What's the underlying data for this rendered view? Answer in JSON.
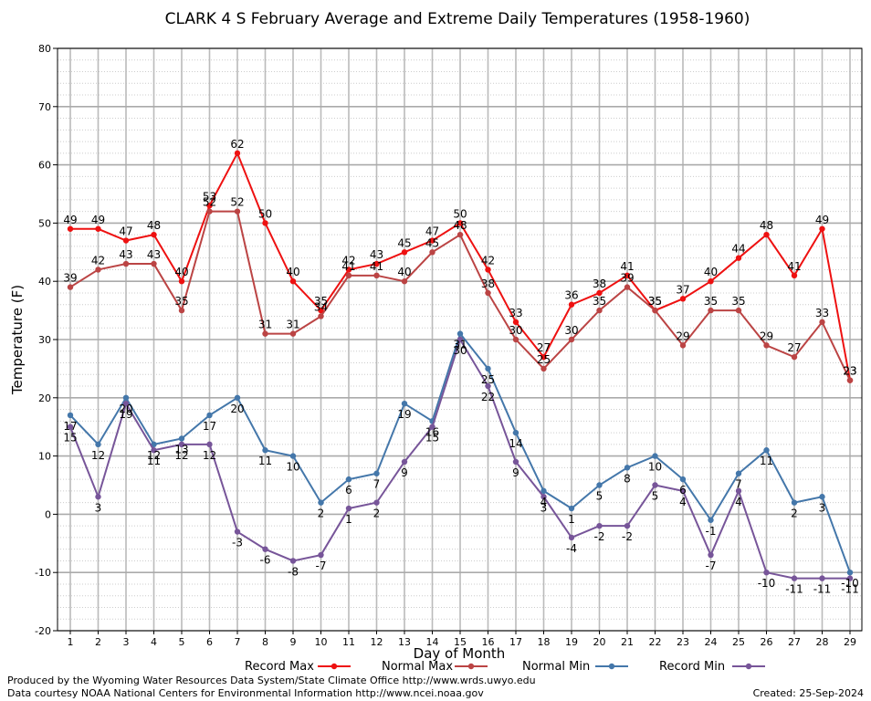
{
  "chart_data": {
    "type": "line",
    "title": "CLARK 4 S February Average and Extreme Daily Temperatures (1958-1960)",
    "xlabel": "Day of Month",
    "ylabel": "Temperature (F)",
    "x": [
      1,
      2,
      3,
      4,
      5,
      6,
      7,
      8,
      9,
      10,
      11,
      12,
      13,
      14,
      15,
      16,
      17,
      18,
      19,
      20,
      21,
      22,
      23,
      24,
      25,
      26,
      27,
      28,
      29
    ],
    "ylim": [
      -20,
      80
    ],
    "yticks": [
      -20,
      -10,
      0,
      10,
      20,
      30,
      40,
      50,
      60,
      70,
      80
    ],
    "grid": true,
    "legend_position": "bottom",
    "series": [
      {
        "name": "Record Max",
        "color": "#ee1111",
        "label_side": "above",
        "values": [
          49,
          49,
          47,
          48,
          40,
          53,
          62,
          50,
          40,
          35,
          42,
          43,
          45,
          47,
          50,
          42,
          33,
          27,
          36,
          38,
          41,
          35,
          37,
          40,
          44,
          48,
          41,
          49,
          23
        ]
      },
      {
        "name": "Normal Max",
        "color": "#bb4444",
        "label_side": "above",
        "values": [
          39,
          42,
          43,
          43,
          35,
          52,
          52,
          31,
          31,
          34,
          41,
          41,
          40,
          45,
          48,
          38,
          30,
          25,
          30,
          35,
          39,
          35,
          29,
          35,
          35,
          29,
          27,
          33,
          23
        ]
      },
      {
        "name": "Normal Min",
        "color": "#4477aa",
        "label_side": "below",
        "values": [
          17,
          12,
          20,
          12,
          13,
          17,
          20,
          11,
          10,
          2,
          6,
          7,
          19,
          16,
          31,
          25,
          14,
          4,
          1,
          5,
          8,
          10,
          6,
          -1,
          7,
          11,
          2,
          3,
          -10
        ]
      },
      {
        "name": "Record Min",
        "color": "#775599",
        "label_side": "below",
        "values": [
          15,
          3,
          19,
          11,
          12,
          12,
          -3,
          -6,
          -8,
          -7,
          1,
          2,
          9,
          15,
          30,
          22,
          9,
          3,
          -4,
          -2,
          -2,
          5,
          4,
          -7,
          4,
          -10,
          -11,
          -11,
          -11
        ]
      }
    ]
  },
  "footer": {
    "line1": "Produced by the Wyoming Water Resources Data System/State Climate Office http://www.wrds.uwyo.edu",
    "line2": "Data courtesy NOAA National Centers for Environmental Information http://www.ncei.noaa.gov",
    "created": "Created:  25-Sep-2024"
  }
}
